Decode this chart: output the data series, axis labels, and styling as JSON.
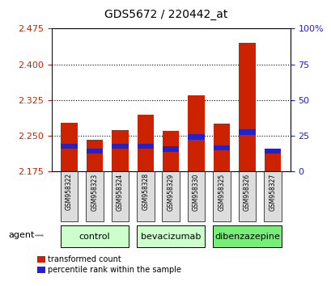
{
  "title": "GDS5672 / 220442_at",
  "samples": [
    "GSM958322",
    "GSM958323",
    "GSM958324",
    "GSM958328",
    "GSM958329",
    "GSM958330",
    "GSM958325",
    "GSM958326",
    "GSM958327"
  ],
  "group_names": [
    "control",
    "bevacizumab",
    "dibenzazepine"
  ],
  "group_ranges": [
    [
      0,
      3
    ],
    [
      3,
      6
    ],
    [
      6,
      9
    ]
  ],
  "group_colors": [
    "#ccffcc",
    "#ccffcc",
    "#77ee77"
  ],
  "ymin": 2.175,
  "ymax": 2.475,
  "yticks": [
    2.175,
    2.25,
    2.325,
    2.4,
    2.475
  ],
  "right_yticks": [
    0,
    25,
    50,
    75,
    100
  ],
  "red_values": [
    2.278,
    2.242,
    2.262,
    2.295,
    2.26,
    2.335,
    2.275,
    2.445,
    2.215
  ],
  "blue_values": [
    2.228,
    2.218,
    2.228,
    2.228,
    2.222,
    2.248,
    2.225,
    2.258,
    2.218
  ],
  "bar_color": "#cc2200",
  "blue_color": "#2222cc",
  "bar_width": 0.65,
  "legend_red": "transformed count",
  "legend_blue": "percentile rank within the sample",
  "left_tick_color": "#cc2200",
  "right_tick_color": "#2222cc",
  "grid_dotted_at": [
    2.25,
    2.325,
    2.4
  ]
}
